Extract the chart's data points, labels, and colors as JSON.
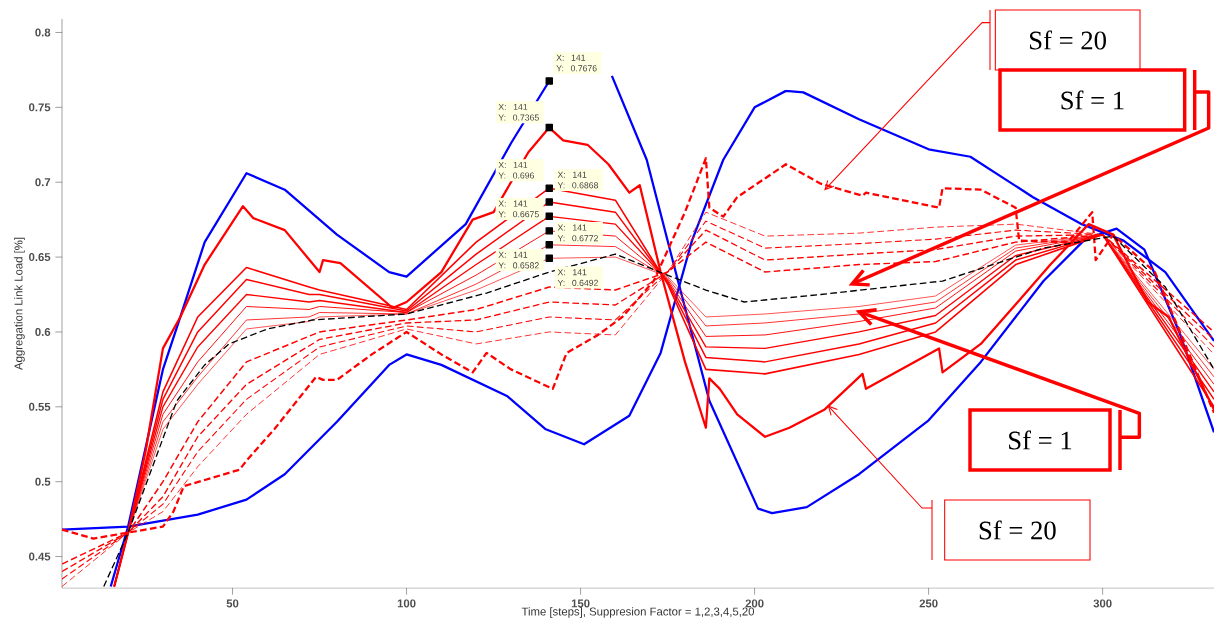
{
  "chart_data": {
    "type": "line",
    "xlabel": "Time [steps], Suppresion Factor = 1,2,3,4,5,20",
    "ylabel": "Aggregation Link Load [%]",
    "xlim": [
      1,
      332
    ],
    "ylim": [
      0.429,
      0.809
    ],
    "xticks": [
      50,
      100,
      150,
      200,
      250,
      300
    ],
    "yticks": [
      0.45,
      0.5,
      0.55,
      0.6,
      0.65,
      0.7,
      0.75,
      0.8
    ],
    "series": [
      {
        "color": "#0000ff",
        "line_style": "solid",
        "x": [
          15,
          20,
          30,
          35,
          42,
          54,
          65,
          80,
          95,
          100,
          117,
          130,
          141,
          148,
          155,
          159,
          169,
          178,
          187,
          201,
          205,
          215,
          230,
          250,
          265,
          283,
          295,
          304,
          312,
          322,
          332
        ],
        "values": [
          0.43,
          0.47,
          0.575,
          0.61,
          0.66,
          0.706,
          0.695,
          0.665,
          0.64,
          0.637,
          0.672,
          0.726,
          0.7676,
          null,
          null,
          0.771,
          0.715,
          0.634,
          0.554,
          0.482,
          0.479,
          0.483,
          0.505,
          0.541,
          0.58,
          0.634,
          0.662,
          0.669,
          0.655,
          0.6,
          0.533
        ]
      },
      {
        "color": "#0000ff",
        "line_style": "solid",
        "x": [
          1,
          20,
          40,
          54,
          65,
          80,
          95,
          100,
          110,
          129,
          140,
          151,
          164,
          173,
          182,
          191,
          200,
          209,
          214,
          230,
          250,
          262,
          280,
          294,
          306,
          318,
          332
        ],
        "values": [
          0.468,
          0.47,
          0.478,
          0.488,
          0.505,
          0.54,
          0.578,
          0.585,
          0.578,
          0.557,
          0.535,
          0.525,
          0.544,
          0.586,
          0.661,
          0.715,
          0.75,
          0.761,
          0.76,
          0.742,
          0.722,
          0.717,
          0.69,
          0.672,
          0.661,
          0.64,
          0.594
        ]
      },
      {
        "color": "#ff0000",
        "line_style": "solid",
        "x": [
          16,
          20,
          25,
          30,
          35,
          42,
          53,
          56,
          65,
          75,
          76,
          81,
          96,
          100,
          110,
          119,
          125,
          135,
          141,
          145,
          152,
          158,
          164,
          167,
          173,
          180,
          186,
          187,
          190,
          195,
          203,
          210,
          220,
          231,
          232,
          253,
          254,
          265,
          276,
          285,
          296,
          303,
          313,
          319,
          332
        ],
        "values": [
          0.43,
          0.466,
          0.52,
          0.589,
          0.61,
          0.645,
          0.684,
          0.676,
          0.668,
          0.64,
          0.648,
          0.646,
          0.616,
          0.62,
          0.64,
          0.675,
          0.68,
          0.72,
          0.7365,
          0.728,
          0.725,
          0.712,
          0.693,
          0.698,
          0.64,
          0.58,
          0.536,
          0.569,
          0.562,
          0.545,
          0.53,
          0.536,
          0.548,
          0.572,
          0.562,
          0.589,
          0.573,
          0.592,
          0.621,
          0.645,
          0.672,
          0.665,
          0.62,
          0.61,
          0.548
        ]
      },
      {
        "color": "#ff0000",
        "line_style": "dashed",
        "x": [
          1,
          10,
          20,
          30,
          33,
          36,
          52,
          54,
          62,
          74,
          76,
          80,
          90,
          100,
          110,
          119,
          123,
          130,
          142,
          146,
          155,
          162,
          171,
          180,
          186,
          187,
          191,
          195,
          209,
          219,
          231,
          232,
          253,
          254,
          265,
          275,
          276,
          290,
          297,
          298,
          303,
          315,
          332
        ],
        "values": [
          0.468,
          0.462,
          0.466,
          0.47,
          0.48,
          0.497,
          0.508,
          0.514,
          0.535,
          0.57,
          0.568,
          0.568,
          0.585,
          0.6,
          0.585,
          0.573,
          0.586,
          0.575,
          0.562,
          0.586,
          0.598,
          0.61,
          0.634,
          0.68,
          0.716,
          0.683,
          0.677,
          0.69,
          0.712,
          0.699,
          0.691,
          0.693,
          0.683,
          0.696,
          0.695,
          0.683,
          0.661,
          0.66,
          0.68,
          0.648,
          0.665,
          0.64,
          0.546
        ]
      },
      {
        "color": "#ff0000",
        "line_style": "solid",
        "x": [
          16,
          20,
          30,
          40,
          54,
          72,
          75,
          100,
          120,
          141,
          160,
          175,
          186,
          203,
          230,
          252,
          275,
          300,
          332
        ],
        "values": [
          0.43,
          0.466,
          0.56,
          0.61,
          0.643,
          0.63,
          0.628,
          0.615,
          0.66,
          0.696,
          0.688,
          0.632,
          0.575,
          0.572,
          0.585,
          0.6,
          0.645,
          0.665,
          0.55
        ]
      },
      {
        "color": "#ff0000",
        "line_style": "solid",
        "x": [
          16,
          20,
          30,
          40,
          54,
          72,
          75,
          100,
          120,
          141,
          160,
          175,
          186,
          203,
          230,
          252,
          275,
          300,
          332
        ],
        "values": [
          0.43,
          0.466,
          0.555,
          0.6,
          0.635,
          0.625,
          0.625,
          0.614,
          0.652,
          0.6868,
          0.68,
          0.633,
          0.583,
          0.58,
          0.592,
          0.606,
          0.648,
          0.665,
          0.555
        ]
      },
      {
        "color": "#ff0000",
        "line_style": "solid",
        "x": [
          16,
          20,
          30,
          40,
          54,
          72,
          75,
          100,
          120,
          141,
          160,
          175,
          186,
          203,
          230,
          252,
          275,
          300,
          332
        ],
        "values": [
          0.43,
          0.466,
          0.55,
          0.59,
          0.625,
          0.62,
          0.621,
          0.613,
          0.645,
          0.6772,
          0.672,
          0.634,
          0.59,
          0.589,
          0.6,
          0.611,
          0.651,
          0.665,
          0.56
        ]
      },
      {
        "color": "#ff0000",
        "line_style": "solid",
        "x": [
          16,
          20,
          30,
          40,
          54,
          72,
          75,
          100,
          120,
          141,
          160,
          175,
          186,
          203,
          230,
          252,
          275,
          300,
          332
        ],
        "values": [
          0.43,
          0.466,
          0.545,
          0.58,
          0.617,
          0.615,
          0.617,
          0.613,
          0.638,
          0.6675,
          0.664,
          0.635,
          0.597,
          0.598,
          0.607,
          0.616,
          0.654,
          0.665,
          0.565
        ]
      },
      {
        "color": "#ff0000",
        "line_style": "solid",
        "x": [
          16,
          20,
          30,
          40,
          54,
          72,
          75,
          100,
          120,
          141,
          160,
          175,
          186,
          203,
          230,
          252,
          275,
          300,
          332
        ],
        "values": [
          0.43,
          0.466,
          0.54,
          0.57,
          0.608,
          0.61,
          0.613,
          0.612,
          0.632,
          0.6582,
          0.657,
          0.636,
          0.604,
          0.606,
          0.612,
          0.62,
          0.656,
          0.665,
          0.57
        ]
      },
      {
        "color": "#ff0000",
        "line_style": "solid",
        "x": [
          16,
          20,
          30,
          40,
          54,
          72,
          75,
          100,
          120,
          141,
          160,
          175,
          186,
          203,
          230,
          252,
          275,
          300,
          332
        ],
        "values": [
          0.43,
          0.466,
          0.535,
          0.565,
          0.602,
          0.607,
          0.61,
          0.612,
          0.628,
          0.6492,
          0.65,
          0.637,
          0.61,
          0.612,
          0.617,
          0.624,
          0.658,
          0.665,
          0.575
        ]
      },
      {
        "color": "#ff0000",
        "line_style": "dashed",
        "x": [
          1,
          20,
          30,
          40,
          54,
          75,
          100,
          120,
          141,
          160,
          175,
          186,
          203,
          230,
          252,
          275,
          300,
          332
        ],
        "values": [
          0.445,
          0.466,
          0.5,
          0.54,
          0.58,
          0.6,
          0.608,
          0.615,
          0.63,
          0.628,
          0.64,
          0.66,
          0.64,
          0.645,
          0.647,
          0.66,
          0.665,
          0.6
        ]
      },
      {
        "color": "#ff0000",
        "line_style": "dashed",
        "x": [
          1,
          20,
          30,
          40,
          54,
          75,
          100,
          120,
          141,
          160,
          175,
          186,
          203,
          230,
          252,
          275,
          300,
          332
        ],
        "values": [
          0.44,
          0.466,
          0.49,
          0.53,
          0.565,
          0.595,
          0.606,
          0.608,
          0.62,
          0.618,
          0.64,
          0.668,
          0.648,
          0.652,
          0.655,
          0.664,
          0.665,
          0.595
        ]
      },
      {
        "color": "#ff0000",
        "line_style": "dashed",
        "x": [
          1,
          20,
          30,
          40,
          54,
          75,
          100,
          120,
          141,
          160,
          175,
          186,
          203,
          230,
          252,
          275,
          300,
          332
        ],
        "values": [
          0.435,
          0.466,
          0.485,
          0.52,
          0.555,
          0.59,
          0.604,
          0.6,
          0.61,
          0.608,
          0.64,
          0.674,
          0.656,
          0.659,
          0.662,
          0.668,
          0.665,
          0.59
        ]
      },
      {
        "color": "#ff0000",
        "line_style": "dashed",
        "x": [
          1,
          20,
          30,
          40,
          54,
          75,
          100,
          120,
          141,
          160,
          175,
          186,
          203,
          230,
          252,
          275,
          300,
          332
        ],
        "values": [
          0.43,
          0.466,
          0.48,
          0.51,
          0.545,
          0.585,
          0.602,
          0.592,
          0.6,
          0.598,
          0.64,
          0.68,
          0.664,
          0.666,
          0.67,
          0.672,
          0.665,
          0.585
        ]
      },
      {
        "type": "scatter",
        "marker": "square",
        "color": "#000000",
        "x": [
          141,
          141,
          141,
          141,
          141,
          141,
          141,
          141
        ],
        "values": [
          0.7676,
          0.7365,
          0.696,
          0.6868,
          0.6772,
          0.6675,
          0.6582,
          0.6492
        ],
        "value_labels": [
          "X: 141 Y: 0.7676",
          "X: 141 Y: 0.7365",
          "X: 141 Y: 0.696",
          "X: 141 Y: 0.6868",
          "X: 141 Y: 0.6772",
          "X: 141 Y: 0.6675",
          "X: 141 Y: 0.6582",
          "X: 141 Y: 0.6492"
        ]
      },
      {
        "color": "#000000",
        "line_style": "dashed",
        "x": [
          13,
          20,
          27,
          34,
          42,
          49,
          60,
          73,
          100,
          123,
          141,
          160,
          176,
          186,
          197,
          219,
          254,
          283,
          303,
          318,
          332
        ],
        "values": [
          0.43,
          0.466,
          0.51,
          0.554,
          0.578,
          0.592,
          0.602,
          0.608,
          0.612,
          0.626,
          0.64,
          0.652,
          0.637,
          0.628,
          0.62,
          0.625,
          0.634,
          0.656,
          0.664,
          0.63,
          0.575
        ]
      }
    ],
    "annotations": [
      "Sf = 20",
      "Sf = 1",
      "Sf = 1",
      "Sf = 20"
    ]
  }
}
